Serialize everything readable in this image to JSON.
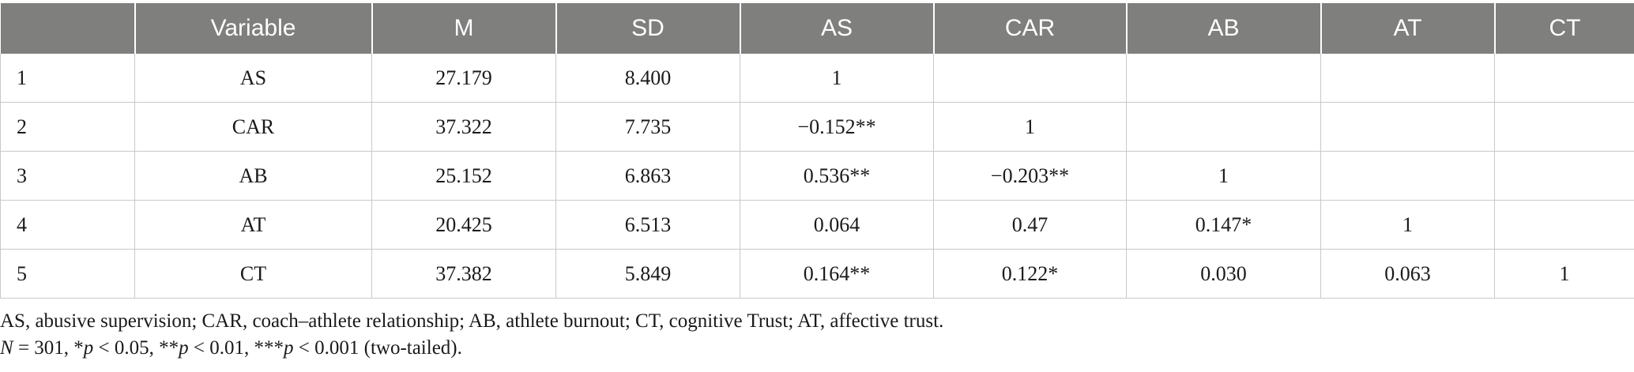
{
  "table": {
    "headers": [
      "",
      "Variable",
      "M",
      "SD",
      "AS",
      "CAR",
      "AB",
      "AT",
      "CT"
    ],
    "rows": [
      [
        "1",
        "AS",
        "27.179",
        "8.400",
        "1",
        "",
        "",
        "",
        ""
      ],
      [
        "2",
        "CAR",
        "37.322",
        "7.735",
        "−0.152**",
        "1",
        "",
        "",
        ""
      ],
      [
        "3",
        "AB",
        "25.152",
        "6.863",
        "0.536**",
        "−0.203**",
        "1",
        "",
        ""
      ],
      [
        "4",
        "AT",
        "20.425",
        "6.513",
        "0.064",
        "0.47",
        "0.147*",
        "1",
        ""
      ],
      [
        "5",
        "CT",
        "37.382",
        "5.849",
        "0.164**",
        "0.122*",
        "0.030",
        "0.063",
        "1"
      ]
    ]
  },
  "notes": {
    "abbreviations": "AS, abusive supervision; CAR, coach–athlete relationship; AB, athlete burnout; CT, cognitive Trust; AT, affective trust.",
    "n_label": "N",
    "n_value": " = 301, *",
    "p1": "p",
    "p1_text": " < 0.05, **",
    "p2": "p",
    "p2_text": " < 0.01, ***",
    "p3": "p",
    "p3_text": " < 0.001 (two-tailed)."
  }
}
